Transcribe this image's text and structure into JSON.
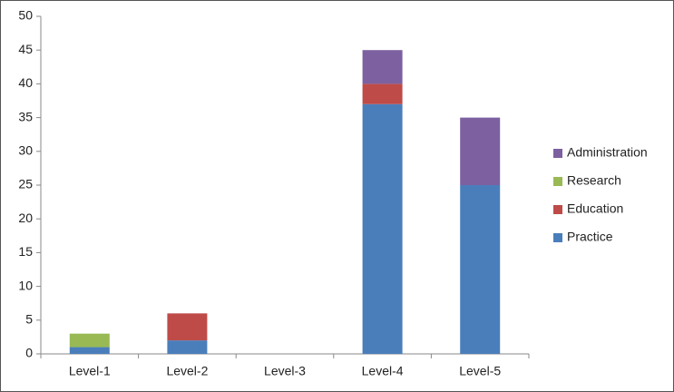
{
  "chart_data": {
    "type": "stacked-bar",
    "categories": [
      "Level-1",
      "Level-2",
      "Level-3",
      "Level-4",
      "Level-5"
    ],
    "series": [
      {
        "name": "Practice",
        "color": "#4a7ebb",
        "values": [
          1,
          2,
          0,
          37,
          25
        ]
      },
      {
        "name": "Education",
        "color": "#be4b48",
        "values": [
          0,
          4,
          0,
          3,
          0
        ]
      },
      {
        "name": "Research",
        "color": "#98b954",
        "values": [
          2,
          0,
          0,
          0,
          0
        ]
      },
      {
        "name": "Administration",
        "color": "#7d60a0",
        "values": [
          0,
          0,
          0,
          5,
          10
        ]
      }
    ],
    "ylim": [
      0,
      50
    ],
    "yticks": [
      0,
      5,
      10,
      15,
      20,
      25,
      30,
      35,
      40,
      45,
      50
    ],
    "grid": false,
    "legend": "right"
  }
}
